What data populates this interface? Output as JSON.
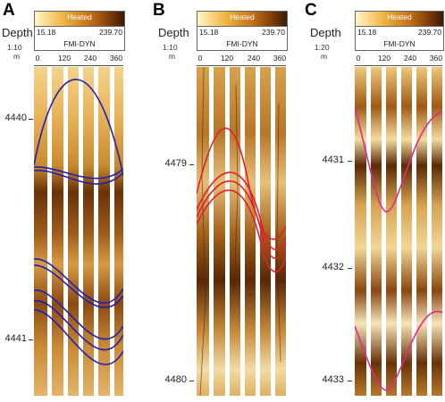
{
  "panels": [
    {
      "letter": "A",
      "depth_label": "Depth",
      "scale_top": "1:10",
      "scale_bottom": "m",
      "colorbar": {
        "label": "Heated",
        "min": "15.18",
        "max": "239.70"
      },
      "track_name": "FMI-DYN",
      "azimuths": [
        "0",
        "120",
        "240",
        "360"
      ],
      "depth_ticks": [
        "4440",
        "4441"
      ],
      "curve_color": "#2020b0"
    },
    {
      "letter": "B",
      "depth_label": "Depth",
      "scale_top": "1:10",
      "scale_bottom": "m",
      "colorbar": {
        "label": "Heated",
        "min": "15.18",
        "max": "239.70"
      },
      "track_name": "FMI-DYN",
      "azimuths": [
        "0",
        "120",
        "240",
        "360"
      ],
      "depth_ticks": [
        "4479",
        "4480"
      ],
      "curve_color": "#e0202a"
    },
    {
      "letter": "C",
      "depth_label": "Depth",
      "scale_top": "1:20",
      "scale_bottom": "m",
      "colorbar": {
        "label": "Heated",
        "min": "15.18",
        "max": "239.70"
      },
      "track_name": "FMI-DYN",
      "azimuths": [
        "0",
        "120",
        "240",
        "360"
      ],
      "depth_ticks": [
        "4431",
        "4432",
        "4433"
      ],
      "curve_color": "#e02a8a"
    }
  ]
}
